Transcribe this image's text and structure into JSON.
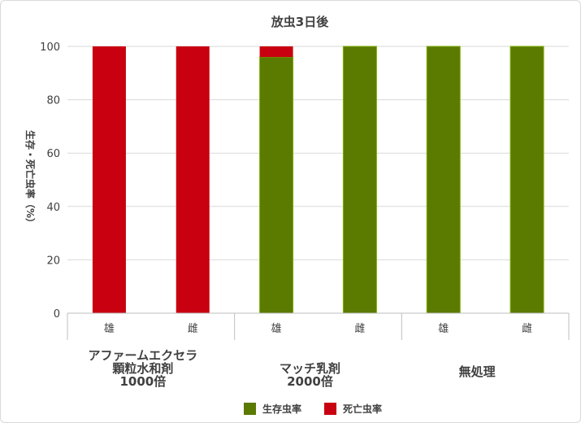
{
  "chart_data": {
    "type": "bar",
    "stacked": true,
    "title": "放虫3日後",
    "ylabel": "生存・死亡虫率（%）",
    "ylim": [
      0,
      100
    ],
    "yticks": [
      0,
      20,
      40,
      60,
      80,
      100
    ],
    "grid": true,
    "legend_position": "bottom",
    "groups": [
      {
        "label_lines": [
          "アファームエクセラ",
          "顆粒水和剤",
          "1000倍"
        ],
        "categories": [
          "雄",
          "雌"
        ]
      },
      {
        "label_lines": [
          "マッチ乳剤",
          "2000倍"
        ],
        "categories": [
          "雄",
          "雌"
        ]
      },
      {
        "label_lines": [
          "無処理"
        ],
        "categories": [
          "雄",
          "雌"
        ]
      }
    ],
    "series": [
      {
        "name": "生存虫率",
        "color": "#5a7a00",
        "values": [
          0,
          0,
          96,
          100,
          100,
          100
        ]
      },
      {
        "name": "死亡虫率",
        "color": "#c8000f",
        "values": [
          100,
          100,
          4,
          0,
          0,
          0
        ]
      }
    ]
  }
}
